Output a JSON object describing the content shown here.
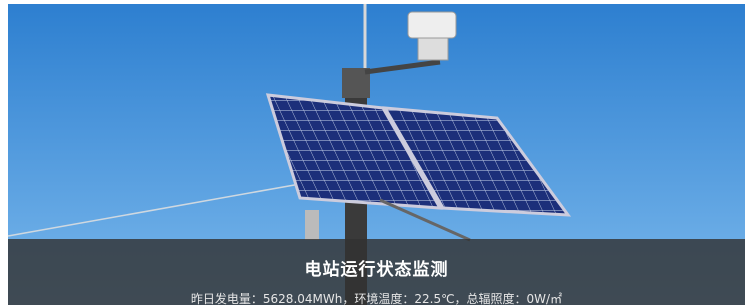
{
  "caption": {
    "title": "电站运行状态监测",
    "details": "昨日发电量：5628.04MWh，环境温度：22.5℃，总辐照度：0W/㎡"
  }
}
